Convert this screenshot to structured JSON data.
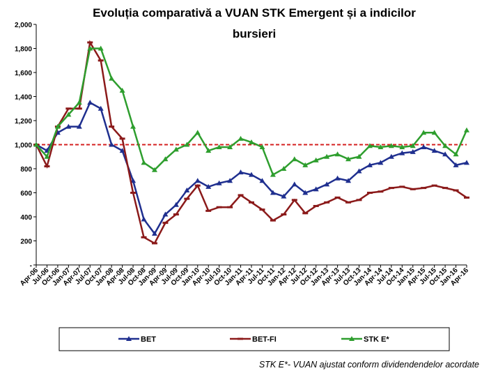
{
  "chart_data": {
    "type": "line",
    "title": [
      "Evoluția  comparativă a VUAN STK Emergent și a indicilor",
      "bursieri"
    ],
    "categories": [
      "Apr-06",
      "Jul-06",
      "Oct-06",
      "Jan-07",
      "Apr-07",
      "Jul-07",
      "Oct-07",
      "Jan-08",
      "Apr-08",
      "Jul-08",
      "Oct-08",
      "Jan-09",
      "Apr-09",
      "Jul-09",
      "Oct-09",
      "Jan-10",
      "Apr-10",
      "Jul-10",
      "Oct-10",
      "Jan-11",
      "Apr-11",
      "Jul-11",
      "Oct-11",
      "Jan-12",
      "Apr-12",
      "Jul-12",
      "Oct-12",
      "Jan-13",
      "Apr-13",
      "Jul-13",
      "Oct-13",
      "Jan-14",
      "Apr-14",
      "Jul-14",
      "Oct-14",
      "Jan-15",
      "Apr-15",
      "Jul-15",
      "Oct-15",
      "Jan-16",
      "Apr-16"
    ],
    "series": [
      {
        "name": "BET",
        "color": "#1f2f8f",
        "marker": "triangle",
        "values": [
          1000,
          950,
          1100,
          1150,
          1150,
          1350,
          1300,
          1000,
          950,
          700,
          380,
          260,
          420,
          500,
          620,
          700,
          650,
          680,
          700,
          770,
          750,
          700,
          600,
          570,
          670,
          600,
          630,
          670,
          720,
          700,
          780,
          830,
          850,
          900,
          930,
          940,
          980,
          950,
          920,
          830,
          850
        ]
      },
      {
        "name": "BET-FI",
        "color": "#8b1a1a",
        "marker": "dash",
        "values": [
          1000,
          820,
          1150,
          1300,
          1300,
          1850,
          1700,
          1150,
          1050,
          600,
          230,
          180,
          350,
          420,
          550,
          660,
          450,
          480,
          480,
          580,
          520,
          460,
          370,
          420,
          540,
          430,
          490,
          520,
          560,
          520,
          540,
          600,
          610,
          640,
          650,
          630,
          640,
          660,
          640,
          620,
          560
        ]
      },
      {
        "name": "STK E*",
        "color": "#2e9e2e",
        "marker": "triangle",
        "values": [
          1000,
          900,
          1150,
          1250,
          1350,
          1800,
          1800,
          1550,
          1450,
          1150,
          850,
          790,
          880,
          960,
          1000,
          1100,
          950,
          980,
          980,
          1050,
          1020,
          980,
          750,
          800,
          880,
          830,
          870,
          900,
          920,
          880,
          900,
          990,
          980,
          990,
          980,
          990,
          1100,
          1100,
          990,
          920,
          1120
        ]
      }
    ],
    "ylim": [
      0,
      2000
    ],
    "yticks": [
      {
        "value": 0,
        "label": "-"
      },
      200,
      400,
      600,
      800,
      {
        "value": 1000,
        "label": "1,000"
      },
      {
        "value": 1200,
        "label": "1,200"
      },
      {
        "value": 1400,
        "label": "1,400"
      },
      {
        "value": 1600,
        "label": "1,600"
      },
      {
        "value": 1800,
        "label": "1,800"
      },
      {
        "value": 2000,
        "label": "2,000"
      }
    ],
    "reference_line": {
      "value": 1000,
      "color": "#d42020"
    },
    "footnote": "STK E*- VUAN ajustat conform dividendendelor acordate"
  }
}
